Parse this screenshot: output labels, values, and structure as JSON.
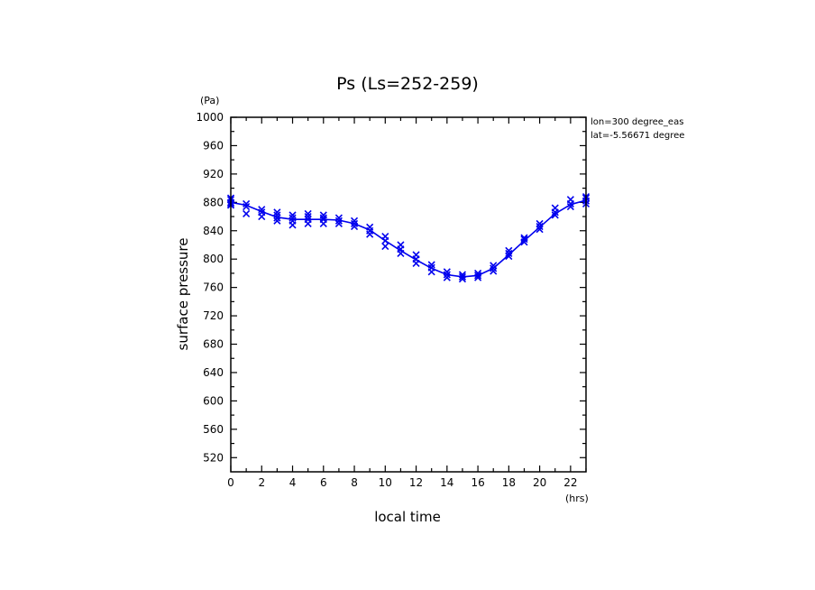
{
  "chart_data": {
    "type": "line",
    "title": "Ps (Ls=252-259)",
    "xlabel": "local time",
    "ylabel": "surface pressure",
    "x_unit": "(hrs)",
    "y_unit": "(Pa)",
    "xlim": [
      0,
      23
    ],
    "ylim": [
      500,
      1000
    ],
    "x_ticks": [
      0,
      2,
      4,
      6,
      8,
      10,
      12,
      14,
      16,
      18,
      20,
      22
    ],
    "y_ticks": [
      520,
      560,
      600,
      640,
      680,
      720,
      760,
      800,
      840,
      880,
      920,
      960,
      1000
    ],
    "grid": false,
    "annotations": [
      "lon=300 degree_eas",
      "lat=-5.56671 degree"
    ],
    "colors": {
      "series": "#0000ee",
      "axis": "#000000"
    },
    "series": [
      {
        "type": "line",
        "x": [
          0,
          1,
          2,
          3,
          4,
          5,
          6,
          7,
          8,
          9,
          10,
          11,
          12,
          13,
          14,
          15,
          16,
          17,
          18,
          19,
          20,
          21,
          22,
          23
        ],
        "y": [
          880,
          876,
          867,
          859,
          856,
          856,
          856,
          855,
          850,
          841,
          826,
          812,
          799,
          787,
          778,
          775,
          777,
          787,
          806,
          826,
          845,
          864,
          877,
          883
        ]
      },
      {
        "type": "scatter",
        "marker": "x",
        "x": [
          0,
          0,
          0,
          0,
          0,
          1,
          1,
          1,
          2,
          2,
          2,
          3,
          3,
          3,
          3,
          4,
          4,
          4,
          4,
          5,
          5,
          5,
          5,
          6,
          6,
          6,
          6,
          7,
          7,
          7,
          8,
          8,
          8,
          9,
          9,
          9,
          10,
          10,
          10,
          11,
          11,
          11,
          12,
          12,
          12,
          13,
          13,
          13,
          14,
          14,
          14,
          15,
          15,
          15,
          16,
          16,
          16,
          17,
          17,
          17,
          18,
          18,
          18,
          19,
          19,
          19,
          20,
          20,
          20,
          21,
          21,
          21,
          22,
          22,
          22,
          23,
          23,
          23,
          23
        ],
        "y": [
          876,
          880,
          884,
          878,
          886,
          864,
          874,
          878,
          860,
          866,
          870,
          854,
          858,
          862,
          866,
          848,
          854,
          858,
          862,
          850,
          856,
          860,
          864,
          850,
          856,
          858,
          862,
          850,
          854,
          858,
          846,
          850,
          854,
          835,
          840,
          845,
          818,
          826,
          832,
          808,
          814,
          820,
          794,
          800,
          806,
          782,
          788,
          792,
          774,
          778,
          782,
          772,
          775,
          778,
          774,
          777,
          780,
          783,
          787,
          791,
          804,
          808,
          812,
          824,
          828,
          830,
          842,
          846,
          850,
          862,
          866,
          872,
          874,
          878,
          884,
          878,
          882,
          886,
          888
        ]
      }
    ]
  }
}
